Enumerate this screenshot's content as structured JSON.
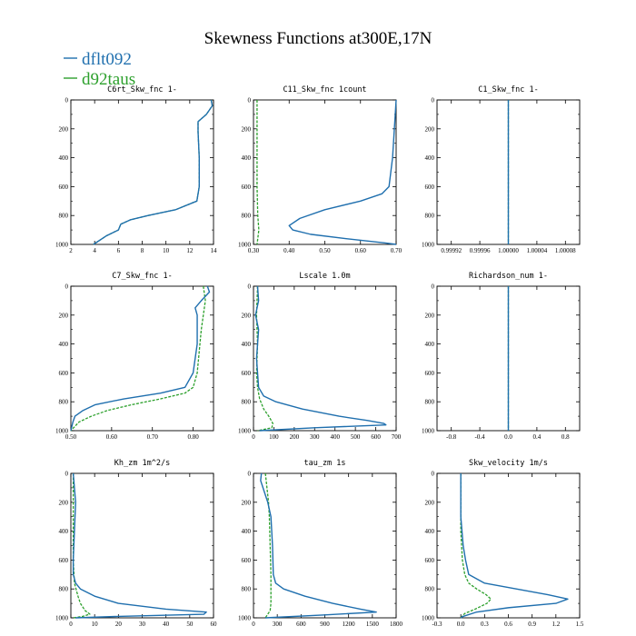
{
  "figure": {
    "title": "Skewness Functions at300E,17N",
    "legend": [
      {
        "name": "dflt092",
        "color": "#1f6fae"
      },
      {
        "name": "d92taus",
        "color": "#2ca02c"
      }
    ]
  },
  "chart_data": [
    {
      "type": "line",
      "title": "C6rt_Skw_fnc 1-",
      "xlim": [
        2,
        14
      ],
      "ylim": [
        1000,
        0
      ],
      "xticks": [
        2,
        4,
        6,
        8,
        10,
        12,
        14
      ],
      "xtick_labels": [
        "2",
        "4",
        "6",
        "8",
        "10",
        "12",
        "14"
      ],
      "yticks": [
        0,
        200,
        400,
        600,
        800,
        1000
      ],
      "ytick_labels": [
        "0",
        "200",
        "400",
        "600",
        "800",
        "1000"
      ],
      "series": [
        {
          "name": "dflt092",
          "color": "#1f6fae",
          "y": [
            0,
            40,
            100,
            150,
            220,
            400,
            600,
            700,
            760,
            800,
            830,
            860,
            900,
            940,
            1000
          ],
          "x": [
            13.8,
            13.9,
            13.4,
            12.7,
            12.7,
            12.8,
            12.8,
            12.6,
            10.8,
            8.5,
            7.0,
            6.2,
            6.0,
            5.0,
            3.9
          ]
        },
        {
          "name": "d92taus",
          "color": "#2ca02c",
          "y": [
            0,
            40,
            100,
            150,
            220,
            400,
            600,
            700,
            760,
            800,
            830,
            860,
            900,
            940,
            1000
          ],
          "x": [
            13.8,
            13.9,
            13.4,
            12.7,
            12.7,
            12.8,
            12.8,
            12.6,
            10.8,
            8.5,
            7.0,
            6.2,
            6.0,
            5.0,
            3.9
          ]
        }
      ]
    },
    {
      "type": "line",
      "title": "C11_Skw_fnc 1count",
      "xlim": [
        0.3,
        0.7
      ],
      "ylim": [
        1000,
        0
      ],
      "xticks": [
        0.3,
        0.4,
        0.5,
        0.6,
        0.7
      ],
      "xtick_labels": [
        "0.30",
        "0.40",
        "0.50",
        "0.60",
        "0.70"
      ],
      "yticks": [
        0,
        200,
        400,
        600,
        800,
        1000
      ],
      "ytick_labels": [
        "0",
        "200",
        "400",
        "600",
        "800",
        "1000"
      ],
      "series": [
        {
          "name": "dflt092",
          "color": "#1f6fae",
          "y": [
            0,
            200,
            400,
            600,
            650,
            700,
            760,
            820,
            870,
            900,
            930,
            960,
            990,
            1000
          ],
          "x": [
            0.7,
            0.695,
            0.69,
            0.68,
            0.66,
            0.6,
            0.5,
            0.43,
            0.4,
            0.41,
            0.46,
            0.56,
            0.67,
            0.7
          ]
        },
        {
          "name": "d92taus",
          "color": "#2ca02c",
          "y": [
            0,
            300,
            600,
            800,
            900,
            1000
          ],
          "x": [
            0.31,
            0.31,
            0.31,
            0.312,
            0.315,
            0.31
          ]
        }
      ]
    },
    {
      "type": "line",
      "title": "C1_Skw_fnc 1-",
      "xlim": [
        0.9999,
        1.0001
      ],
      "ylim": [
        1000,
        0
      ],
      "xticks": [
        0.99992,
        0.99996,
        1.0,
        1.00004,
        1.00008
      ],
      "xtick_labels": [
        "0.99992",
        "0.99996",
        "1.00000",
        "1.00004",
        "1.00008"
      ],
      "yticks": [
        0,
        200,
        400,
        600,
        800,
        1000
      ],
      "ytick_labels": [
        "0",
        "200",
        "400",
        "600",
        "800",
        "1000"
      ],
      "series": [
        {
          "name": "dflt092",
          "color": "#1f6fae",
          "y": [
            0,
            1000
          ],
          "x": [
            1.0,
            1.0
          ]
        },
        {
          "name": "d92taus",
          "color": "#2ca02c",
          "y": [
            0,
            1000
          ],
          "x": [
            1.0,
            1.0
          ]
        }
      ]
    },
    {
      "type": "line",
      "title": "C7_Skw_fnc 1-",
      "xlim": [
        0.5,
        0.85
      ],
      "ylim": [
        1000,
        0
      ],
      "xticks": [
        0.5,
        0.6,
        0.7,
        0.8
      ],
      "xtick_labels": [
        "0.50",
        "0.60",
        "0.70",
        "0.80"
      ],
      "yticks": [
        0,
        200,
        400,
        600,
        800,
        1000
      ],
      "ytick_labels": [
        "0",
        "200",
        "400",
        "600",
        "800",
        "1000"
      ],
      "series": [
        {
          "name": "dflt092",
          "color": "#1f6fae",
          "y": [
            0,
            40,
            100,
            150,
            200,
            400,
            600,
            700,
            740,
            780,
            820,
            860,
            900,
            940,
            1000
          ],
          "x": [
            0.835,
            0.84,
            0.82,
            0.805,
            0.81,
            0.81,
            0.8,
            0.78,
            0.72,
            0.63,
            0.56,
            0.53,
            0.51,
            0.505,
            0.5
          ]
        },
        {
          "name": "d92taus",
          "color": "#2ca02c",
          "y": [
            0,
            100,
            300,
            600,
            700,
            740,
            780,
            820,
            860,
            900,
            940,
            1000
          ],
          "x": [
            0.825,
            0.83,
            0.82,
            0.81,
            0.8,
            0.78,
            0.72,
            0.65,
            0.59,
            0.55,
            0.52,
            0.5
          ]
        }
      ]
    },
    {
      "type": "line",
      "title": "Lscale 1.0m",
      "xlim": [
        0,
        700
      ],
      "ylim": [
        1000,
        0
      ],
      "xticks": [
        0,
        100,
        200,
        300,
        400,
        500,
        600,
        700
      ],
      "xtick_labels": [
        "0",
        "100",
        "200",
        "300",
        "400",
        "500",
        "600",
        "700"
      ],
      "yticks": [
        0,
        200,
        400,
        600,
        800,
        1000
      ],
      "ytick_labels": [
        "0",
        "200",
        "400",
        "600",
        "800",
        "1000"
      ],
      "series": [
        {
          "name": "dflt092",
          "color": "#1f6fae",
          "y": [
            0,
            100,
            200,
            300,
            500,
            700,
            760,
            800,
            850,
            900,
            930,
            950,
            960,
            980,
            1000
          ],
          "x": [
            20,
            25,
            10,
            25,
            15,
            25,
            50,
            110,
            240,
            420,
            560,
            640,
            650,
            300,
            30
          ]
        },
        {
          "name": "d92taus",
          "color": "#2ca02c",
          "y": [
            0,
            200,
            400,
            600,
            700,
            780,
            850,
            900,
            950,
            980,
            1000
          ],
          "x": [
            20,
            15,
            20,
            15,
            20,
            30,
            50,
            75,
            95,
            90,
            20
          ]
        }
      ]
    },
    {
      "type": "line",
      "title": "Richardson_num 1-",
      "xlim": [
        -1.0,
        1.0
      ],
      "ylim": [
        1000,
        0
      ],
      "xticks": [
        -0.8,
        -0.4,
        0.0,
        0.4,
        0.8
      ],
      "xtick_labels": [
        "-0.8",
        "-0.4",
        "0.0",
        "0.4",
        "0.8"
      ],
      "yticks": [
        0,
        200,
        400,
        600,
        800,
        1000
      ],
      "ytick_labels": [
        "0",
        "200",
        "400",
        "600",
        "800",
        "1000"
      ],
      "series": [
        {
          "name": "dflt092",
          "color": "#1f6fae",
          "y": [
            0,
            1000
          ],
          "x": [
            0.0,
            0.0
          ]
        },
        {
          "name": "d92taus",
          "color": "#2ca02c",
          "y": [
            0,
            1000
          ],
          "x": [
            0.0,
            0.0
          ]
        }
      ]
    },
    {
      "type": "line",
      "title": "Kh_zm 1m^2/s",
      "xlim": [
        0,
        60
      ],
      "ylim": [
        1000,
        0
      ],
      "xticks": [
        0,
        10,
        20,
        30,
        40,
        50,
        60
      ],
      "xtick_labels": [
        "0",
        "10",
        "20",
        "30",
        "40",
        "50",
        "60"
      ],
      "yticks": [
        0,
        200,
        400,
        600,
        800,
        1000
      ],
      "ytick_labels": [
        "0",
        "200",
        "400",
        "600",
        "800",
        "1000"
      ],
      "series": [
        {
          "name": "dflt092",
          "color": "#1f6fae",
          "y": [
            0,
            200,
            400,
            600,
            700,
            760,
            800,
            850,
            900,
            940,
            960,
            975,
            990,
            1000
          ],
          "x": [
            1,
            2,
            1.5,
            1,
            1,
            2,
            4,
            10,
            20,
            40,
            57,
            56,
            20,
            2
          ]
        },
        {
          "name": "d92taus",
          "color": "#2ca02c",
          "y": [
            0,
            300,
            600,
            760,
            850,
            900,
            950,
            975,
            990,
            1000
          ],
          "x": [
            1,
            1,
            1,
            1.5,
            3,
            4,
            6,
            8,
            5,
            1
          ]
        }
      ]
    },
    {
      "type": "line",
      "title": "tau_zm 1s",
      "xlim": [
        0,
        1800
      ],
      "ylim": [
        1000,
        0
      ],
      "xticks": [
        0,
        300,
        600,
        900,
        1200,
        1500,
        1800
      ],
      "xtick_labels": [
        "0",
        "300",
        "600",
        "900",
        "1200",
        "1500",
        "1800"
      ],
      "yticks": [
        0,
        200,
        400,
        600,
        800,
        1000
      ],
      "ytick_labels": [
        "0",
        "200",
        "400",
        "600",
        "800",
        "1000"
      ],
      "series": [
        {
          "name": "dflt092",
          "color": "#1f6fae",
          "y": [
            0,
            50,
            100,
            150,
            200,
            300,
            500,
            700,
            760,
            800,
            850,
            900,
            940,
            960,
            980,
            1000
          ],
          "x": [
            100,
            90,
            120,
            150,
            180,
            220,
            240,
            250,
            280,
            380,
            650,
            1000,
            1350,
            1550,
            900,
            150
          ]
        },
        {
          "name": "d92taus",
          "color": "#2ca02c",
          "y": [
            0,
            100,
            200,
            300,
            500,
            700,
            800,
            900,
            950,
            1000
          ],
          "x": [
            150,
            170,
            190,
            200,
            210,
            220,
            220,
            220,
            210,
            150
          ]
        }
      ]
    },
    {
      "type": "line",
      "title": "Skw_velocity 1m/s",
      "xlim": [
        -0.3,
        1.5
      ],
      "ylim": [
        1000,
        0
      ],
      "xticks": [
        -0.3,
        0.0,
        0.3,
        0.6,
        0.9,
        1.2,
        1.5
      ],
      "xtick_labels": [
        "-0.3",
        "0.0",
        "0.3",
        "0.6",
        "0.9",
        "1.2",
        "1.5"
      ],
      "yticks": [
        0,
        200,
        400,
        600,
        800,
        1000
      ],
      "ytick_labels": [
        "0",
        "200",
        "400",
        "600",
        "800",
        "1000"
      ],
      "series": [
        {
          "name": "dflt092",
          "color": "#1f6fae",
          "y": [
            0,
            300,
            500,
            600,
            700,
            760,
            800,
            840,
            870,
            900,
            930,
            960,
            990,
            1000
          ],
          "x": [
            0.0,
            0.0,
            0.03,
            0.06,
            0.1,
            0.3,
            0.7,
            1.1,
            1.35,
            1.2,
            0.6,
            0.2,
            0.03,
            0.0
          ]
        },
        {
          "name": "d92taus",
          "color": "#2ca02c",
          "y": [
            0,
            400,
            600,
            700,
            760,
            800,
            840,
            870,
            900,
            940,
            970,
            1000
          ],
          "x": [
            0.0,
            0.0,
            0.02,
            0.05,
            0.1,
            0.2,
            0.32,
            0.38,
            0.33,
            0.18,
            0.05,
            0.0
          ]
        }
      ]
    }
  ]
}
